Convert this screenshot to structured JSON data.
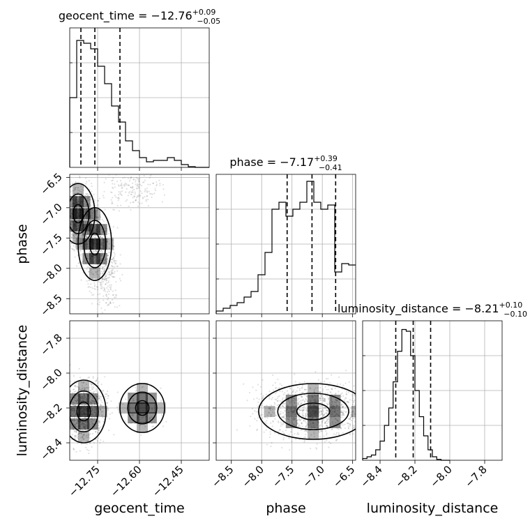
{
  "chart_data": {
    "type": "corner",
    "parameters": [
      "geocent_time",
      "phase",
      "luminosity_distance"
    ],
    "diagonal": [
      {
        "parameter": "geocent_time",
        "title": {
          "prefix": "geocent_time = ",
          "value": "−12.76",
          "sup": "+0.09",
          "sub": "−0.05"
        },
        "range": [
          -12.85,
          -12.35
        ],
        "quantiles": [
          -12.81,
          -12.76,
          -12.67
        ],
        "hist_edges_start": -12.85,
        "hist_bin_width": 0.025,
        "hist_counts": [
          100,
          182,
          178,
          170,
          145,
          120,
          88,
          65,
          38,
          24,
          14,
          8,
          10,
          10,
          14,
          10,
          4,
          1,
          0,
          0
        ],
        "hist_max": 200,
        "xticks": [
          -12.75,
          -12.6,
          -12.45
        ],
        "xtick_labels": [
          "−12.75",
          "−12.60",
          "−12.45"
        ]
      },
      {
        "parameter": "phase",
        "title": {
          "prefix": "phase = ",
          "value": "−7.17",
          "sup": "+0.39",
          "sub": "−0.41"
        },
        "range": [
          -8.75,
          -6.45
        ],
        "quantiles": [
          -7.58,
          -7.17,
          -6.78
        ],
        "hist_edges_start": -8.75,
        "hist_bin_width": 0.115,
        "hist_counts": [
          2,
          4,
          6,
          8,
          12,
          16,
          28,
          44,
          75,
          80,
          70,
          75,
          80,
          95,
          80,
          75,
          78,
          30,
          36,
          35
        ],
        "hist_max": 100,
        "xticks": [
          -8.5,
          -8.0,
          -7.5,
          -7.0,
          -6.5
        ],
        "xtick_labels": [
          "−8.5",
          "−8.0",
          "−7.5",
          "−7.0",
          "−6.5"
        ]
      },
      {
        "parameter": "luminosity_distance",
        "title": {
          "prefix": "luminosity_distance = ",
          "value": "−8.21",
          "sup": "+0.10",
          "sub": "−0.10"
        },
        "range": [
          -8.5,
          -7.7
        ],
        "quantiles": [
          -8.31,
          -8.21,
          -8.11
        ],
        "hist_edges_start": -8.5,
        "hist_bin_width": 0.025,
        "hist_counts": [
          2,
          4,
          6,
          12,
          22,
          40,
          60,
          90,
          125,
          150,
          148,
          120,
          80,
          50,
          28,
          12,
          4,
          1,
          0,
          0
        ],
        "hist_max": 160,
        "xticks": [
          -8.4,
          -8.2,
          -8.0,
          -7.8
        ],
        "xtick_labels": [
          "−8.4",
          "−8.2",
          "−8.0",
          "−7.8"
        ]
      }
    ],
    "offdiagonal_y": {
      "phase": {
        "range": [
          -8.75,
          -6.45
        ],
        "yticks": [
          -6.5,
          -7.0,
          -7.5,
          -8.0,
          -8.5
        ],
        "ytick_labels": [
          "−6.5",
          "−7.0",
          "−7.5",
          "−8.0",
          "−8.5"
        ]
      },
      "luminosity_distance": {
        "range": [
          -8.5,
          -7.7
        ],
        "yticks": [
          -7.8,
          -8.0,
          -8.2,
          -8.4
        ],
        "ytick_labels": [
          "−7.8",
          "−8.0",
          "−8.2",
          "−8.4"
        ]
      }
    },
    "axis_labels": {
      "geocent_time": "geocent_time",
      "phase": "phase",
      "luminosity_distance": "luminosity_distance"
    },
    "grid": true,
    "levels_color": "#000000",
    "density_color": "#000000"
  }
}
